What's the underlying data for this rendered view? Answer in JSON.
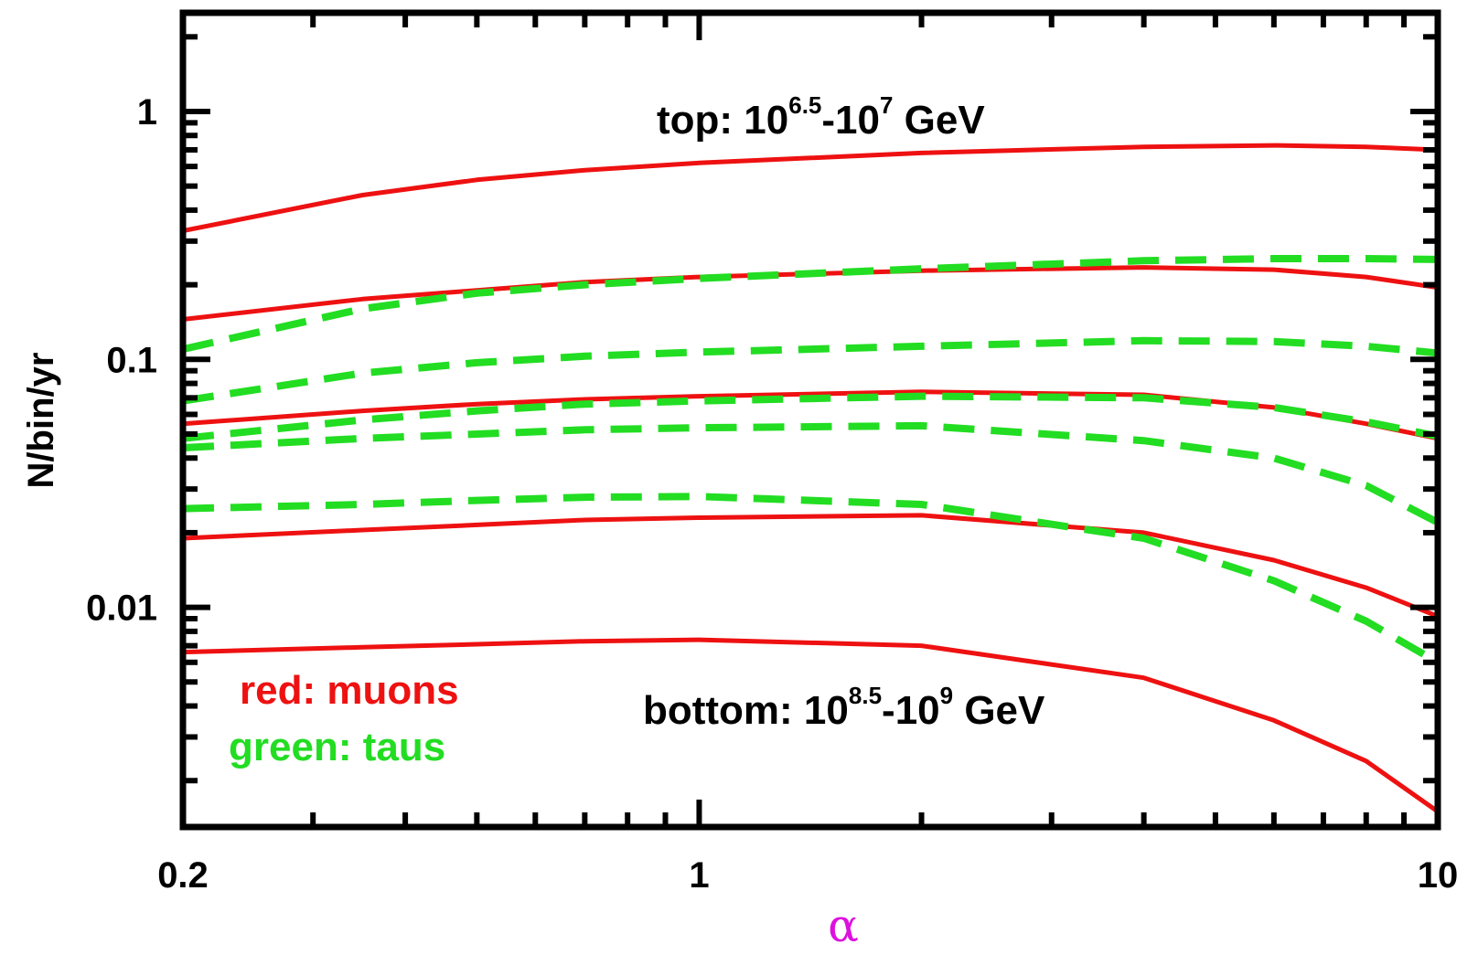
{
  "chart_data": {
    "type": "line",
    "x_scale": "log",
    "y_scale": "log",
    "xlim": [
      0.2,
      10
    ],
    "ylim": [
      0.0013,
      2.5
    ],
    "xlabel": "α",
    "ylabel": "N/bin/yr",
    "xtick_labels": [
      {
        "value": 0.2,
        "label": "0.2"
      },
      {
        "value": 1,
        "label": "1"
      },
      {
        "value": 10,
        "label": "10"
      }
    ],
    "ytick_labels": [
      {
        "value": 0.01,
        "label": "0.01"
      },
      {
        "value": 0.1,
        "label": "0.1"
      },
      {
        "value": 1,
        "label": "1"
      }
    ],
    "annotations": {
      "top": {
        "prefix": "top: 10",
        "sup1": "6.5",
        "mid": "-10",
        "sup2": "7",
        "suffix": " GeV"
      },
      "bottom": {
        "prefix": "bottom: 10",
        "sup1": "8.5",
        "mid": "-10",
        "sup2": "9",
        "suffix": " GeV"
      }
    },
    "legend": [
      {
        "text": "red: muons",
        "color": "#ee1111"
      },
      {
        "text": "green: taus",
        "color": "#22dd22"
      }
    ],
    "colors": {
      "muons": "#ee1111",
      "taus": "#22dd22",
      "xlabel": "#dd11dd"
    },
    "series": [
      {
        "kind": "muon",
        "style": "solid",
        "color": "#ee1111",
        "x": [
          0.2,
          0.35,
          0.5,
          0.7,
          1,
          2,
          4,
          6,
          8,
          10
        ],
        "y": [
          0.33,
          0.46,
          0.53,
          0.58,
          0.62,
          0.68,
          0.72,
          0.73,
          0.72,
          0.7
        ]
      },
      {
        "kind": "muon",
        "style": "solid",
        "color": "#ee1111",
        "x": [
          0.2,
          0.35,
          0.5,
          0.7,
          1,
          2,
          4,
          6,
          8,
          10
        ],
        "y": [
          0.145,
          0.175,
          0.19,
          0.205,
          0.215,
          0.228,
          0.235,
          0.23,
          0.215,
          0.195
        ]
      },
      {
        "kind": "muon",
        "style": "solid",
        "color": "#ee1111",
        "x": [
          0.2,
          0.35,
          0.5,
          0.7,
          1,
          2,
          4,
          6,
          8,
          10
        ],
        "y": [
          0.055,
          0.062,
          0.066,
          0.069,
          0.071,
          0.074,
          0.072,
          0.064,
          0.055,
          0.048
        ]
      },
      {
        "kind": "muon",
        "style": "solid",
        "color": "#ee1111",
        "x": [
          0.2,
          0.35,
          0.5,
          0.7,
          1,
          2,
          4,
          6,
          8,
          10
        ],
        "y": [
          0.019,
          0.0205,
          0.0215,
          0.0225,
          0.023,
          0.0235,
          0.02,
          0.0155,
          0.012,
          0.0092
        ]
      },
      {
        "kind": "muon",
        "style": "solid",
        "color": "#ee1111",
        "x": [
          0.2,
          0.35,
          0.5,
          0.7,
          1,
          2,
          4,
          6,
          8,
          10
        ],
        "y": [
          0.0066,
          0.0069,
          0.0071,
          0.0073,
          0.0074,
          0.007,
          0.0052,
          0.0035,
          0.0024,
          0.0015
        ]
      },
      {
        "kind": "tau",
        "style": "dashed",
        "color": "#22dd22",
        "x": [
          0.2,
          0.35,
          0.5,
          0.7,
          1,
          2,
          4,
          6,
          8,
          10
        ],
        "y": [
          0.11,
          0.16,
          0.185,
          0.2,
          0.212,
          0.232,
          0.25,
          0.255,
          0.255,
          0.253
        ]
      },
      {
        "kind": "tau",
        "style": "dashed",
        "color": "#22dd22",
        "x": [
          0.2,
          0.35,
          0.5,
          0.7,
          1,
          2,
          4,
          6,
          8,
          10
        ],
        "y": [
          0.068,
          0.088,
          0.097,
          0.103,
          0.107,
          0.113,
          0.119,
          0.118,
          0.113,
          0.106
        ]
      },
      {
        "kind": "tau",
        "style": "dashed",
        "color": "#22dd22",
        "x": [
          0.2,
          0.35,
          0.5,
          0.7,
          1,
          2,
          4,
          6,
          8,
          10
        ],
        "y": [
          0.048,
          0.057,
          0.062,
          0.066,
          0.068,
          0.071,
          0.07,
          0.064,
          0.056,
          0.049
        ]
      },
      {
        "kind": "tau",
        "style": "dashed",
        "color": "#22dd22",
        "x": [
          0.2,
          0.35,
          0.5,
          0.7,
          1,
          2,
          4,
          6,
          8,
          10
        ],
        "y": [
          0.044,
          0.048,
          0.05,
          0.052,
          0.053,
          0.054,
          0.047,
          0.04,
          0.031,
          0.022
        ]
      },
      {
        "kind": "tau",
        "style": "dashed",
        "color": "#22dd22",
        "x": [
          0.2,
          0.35,
          0.5,
          0.7,
          1,
          2,
          4,
          6,
          8,
          10
        ],
        "y": [
          0.025,
          0.026,
          0.027,
          0.0278,
          0.028,
          0.026,
          0.019,
          0.0128,
          0.0088,
          0.006
        ]
      }
    ]
  }
}
